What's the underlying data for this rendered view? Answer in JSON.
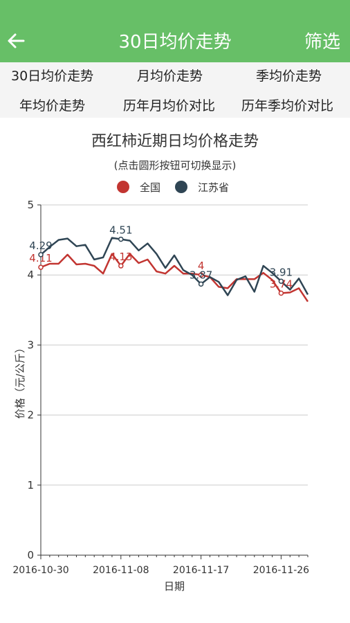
{
  "header": {
    "title": "30日均价走势",
    "filter_label": "筛选",
    "background": "#67bf67"
  },
  "tabs": [
    {
      "label": "30日均价走势"
    },
    {
      "label": "月均价走势"
    },
    {
      "label": "季均价走势"
    },
    {
      "label": "年均价走势"
    },
    {
      "label": "历年月均价对比"
    },
    {
      "label": "历年季均价对比"
    }
  ],
  "chart_data": {
    "type": "line",
    "title": "西红柿近期日均价格走势",
    "subtitle": "(点击圆形按钮可切换显示)",
    "xlabel": "日期",
    "ylabel": "价格（元/公斤）",
    "ylim": [
      0,
      5
    ],
    "yticks": [
      "0",
      "1",
      "2",
      "3",
      "4",
      "5"
    ],
    "xtick_labels": [
      "2016-10-30",
      "2016-11-08",
      "2016-11-17",
      "2016-11-26"
    ],
    "grid": true,
    "legend": "top-center",
    "series": [
      {
        "name": "全国",
        "color": "#c23531",
        "values": [
          4.11,
          4.16,
          4.16,
          4.29,
          4.15,
          4.16,
          4.13,
          4.02,
          4.3,
          4.13,
          4.3,
          4.17,
          4.22,
          4.05,
          4.02,
          4.13,
          4.02,
          4.02,
          4.0,
          3.97,
          3.83,
          3.81,
          3.94,
          3.94,
          3.94,
          4.03,
          3.93,
          3.74,
          3.75,
          3.81,
          3.62
        ],
        "point_labels": [
          {
            "index": 0,
            "text": "4.11"
          },
          {
            "index": 9,
            "text": "4.13"
          },
          {
            "index": 18,
            "text": "4"
          },
          {
            "index": 27,
            "text": "3.74"
          }
        ]
      },
      {
        "name": "江苏省",
        "color": "#2f4554",
        "values": [
          4.29,
          4.4,
          4.5,
          4.52,
          4.41,
          4.43,
          4.22,
          4.25,
          4.53,
          4.51,
          4.49,
          4.35,
          4.45,
          4.3,
          4.1,
          4.28,
          4.07,
          4.0,
          3.87,
          3.97,
          3.9,
          3.71,
          3.93,
          3.98,
          3.76,
          4.13,
          4.03,
          3.91,
          3.79,
          3.95,
          3.72
        ],
        "point_labels": [
          {
            "index": 0,
            "text": "4.29"
          },
          {
            "index": 9,
            "text": "4.51"
          },
          {
            "index": 18,
            "text": "3.87"
          },
          {
            "index": 27,
            "text": "3.91"
          }
        ]
      }
    ]
  }
}
